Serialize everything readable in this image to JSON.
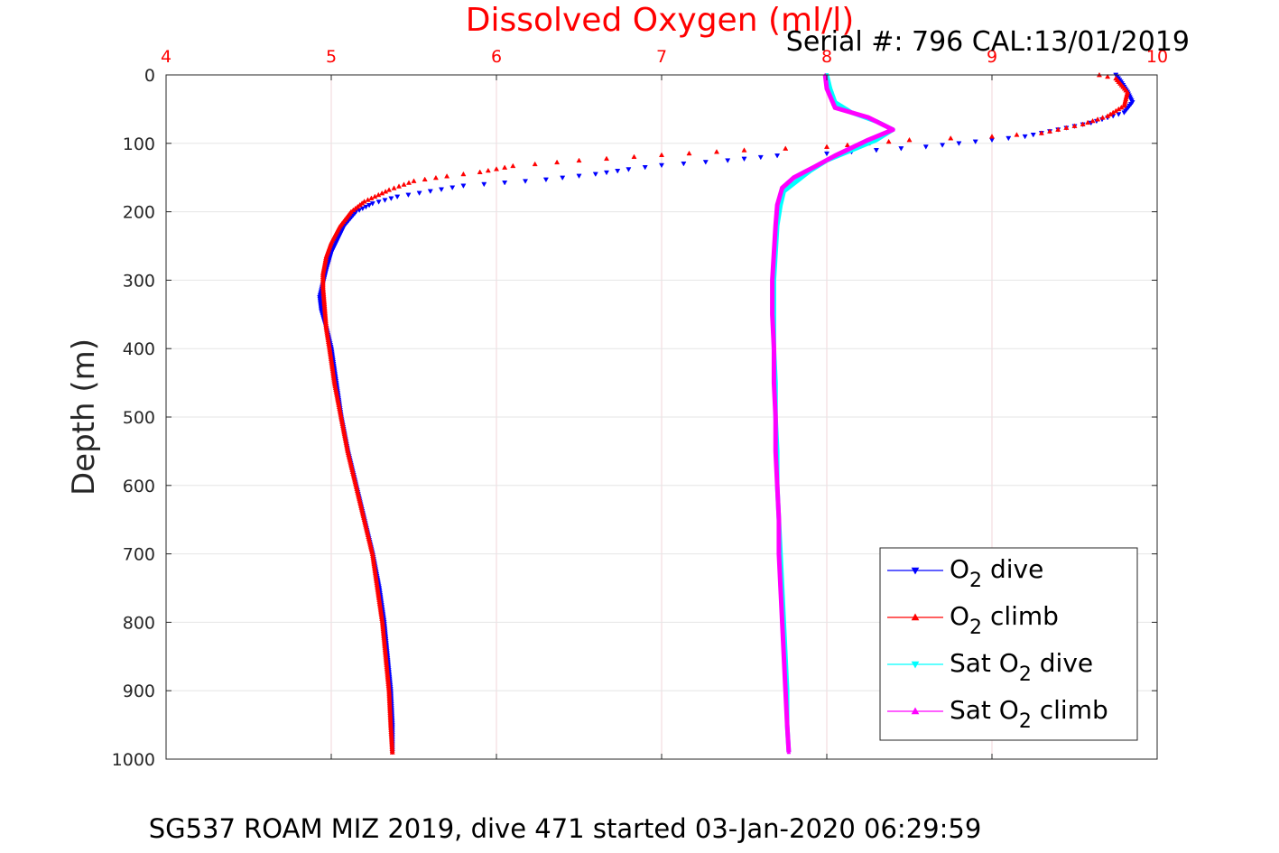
{
  "title": "Dissolved Oxygen (ml/l)",
  "serial_text": "Serial #: 796  CAL:13/01/2019",
  "footer_text": "SG537 ROAM MIZ 2019, dive 471 started 03-Jan-2020 06:29:59",
  "ylabel": "Depth (m)",
  "colors": {
    "title": "#ff0000",
    "x_ticks": "#ff0000",
    "o2_dive": "#0000ff",
    "o2_climb": "#ff0000",
    "sat_dive": "#00ffff",
    "sat_climb": "#ff00ff"
  },
  "legend": {
    "position": "bottom-right",
    "items": [
      {
        "base": "O",
        "sub": "2",
        "rest": " dive"
      },
      {
        "base": "O",
        "sub": "2",
        "rest": " climb"
      },
      {
        "base": "Sat O",
        "sub": "2",
        "rest": " dive"
      },
      {
        "base": "Sat O",
        "sub": "2",
        "rest": " climb"
      }
    ]
  },
  "chart_data": {
    "type": "line",
    "title": "Dissolved Oxygen (ml/l)",
    "xlabel": "Dissolved Oxygen (ml/l)",
    "ylabel": "Depth (m)",
    "x_axis_position": "top",
    "y_axis_reversed": true,
    "xlim": [
      4,
      10
    ],
    "ylim": [
      0,
      1000
    ],
    "x_ticks": [
      "4",
      "5",
      "6",
      "7",
      "8",
      "9",
      "10"
    ],
    "y_ticks": [
      "0",
      "100",
      "200",
      "300",
      "400",
      "500",
      "600",
      "700",
      "800",
      "900",
      "1000"
    ],
    "grid": true,
    "series": [
      {
        "name": "O2 dive",
        "marker": "triangle-down",
        "points": [
          [
            9.75,
            0
          ],
          [
            9.78,
            10
          ],
          [
            9.82,
            25
          ],
          [
            9.85,
            40
          ],
          [
            9.8,
            55
          ],
          [
            9.6,
            70
          ],
          [
            9.4,
            80
          ],
          [
            9.2,
            90
          ],
          [
            9.0,
            95
          ],
          [
            8.6,
            105
          ],
          [
            8.3,
            110
          ],
          [
            8.0,
            115
          ],
          [
            7.7,
            118
          ],
          [
            7.4,
            125
          ],
          [
            7.0,
            132
          ],
          [
            6.8,
            138
          ],
          [
            6.6,
            145
          ],
          [
            6.3,
            153
          ],
          [
            5.8,
            162
          ],
          [
            5.6,
            170
          ],
          [
            5.4,
            178
          ],
          [
            5.25,
            188
          ],
          [
            5.15,
            200
          ],
          [
            5.08,
            220
          ],
          [
            5.04,
            240
          ],
          [
            5.0,
            260
          ],
          [
            4.97,
            285
          ],
          [
            4.95,
            305
          ],
          [
            4.93,
            325
          ],
          [
            4.94,
            345
          ],
          [
            4.97,
            370
          ],
          [
            5.0,
            400
          ],
          [
            5.03,
            450
          ],
          [
            5.06,
            500
          ],
          [
            5.1,
            550
          ],
          [
            5.15,
            600
          ],
          [
            5.2,
            650
          ],
          [
            5.25,
            700
          ],
          [
            5.29,
            750
          ],
          [
            5.32,
            800
          ],
          [
            5.34,
            850
          ],
          [
            5.36,
            900
          ],
          [
            5.37,
            950
          ],
          [
            5.37,
            990
          ]
        ]
      },
      {
        "name": "O2 climb",
        "marker": "triangle-up",
        "points": [
          [
            5.37,
            990
          ],
          [
            5.36,
            950
          ],
          [
            5.35,
            900
          ],
          [
            5.33,
            850
          ],
          [
            5.31,
            800
          ],
          [
            5.28,
            750
          ],
          [
            5.25,
            700
          ],
          [
            5.2,
            650
          ],
          [
            5.15,
            600
          ],
          [
            5.1,
            550
          ],
          [
            5.06,
            500
          ],
          [
            5.02,
            450
          ],
          [
            4.99,
            400
          ],
          [
            4.97,
            370
          ],
          [
            4.96,
            340
          ],
          [
            4.95,
            310
          ],
          [
            4.95,
            290
          ],
          [
            4.97,
            265
          ],
          [
            5.0,
            245
          ],
          [
            5.05,
            222
          ],
          [
            5.12,
            200
          ],
          [
            5.2,
            185
          ],
          [
            5.35,
            168
          ],
          [
            5.5,
            155
          ],
          [
            5.7,
            148
          ],
          [
            5.9,
            142
          ],
          [
            6.1,
            133
          ],
          [
            6.5,
            125
          ],
          [
            7.0,
            117
          ],
          [
            7.5,
            110
          ],
          [
            8.0,
            105
          ],
          [
            8.5,
            95
          ],
          [
            9.0,
            90
          ],
          [
            9.3,
            85
          ],
          [
            9.55,
            72
          ],
          [
            9.7,
            60
          ],
          [
            9.8,
            45
          ],
          [
            9.82,
            25
          ],
          [
            9.75,
            5
          ],
          [
            9.65,
            0
          ]
        ]
      },
      {
        "name": "Sat O2 dive",
        "marker": "triangle-down",
        "points": [
          [
            8.0,
            0
          ],
          [
            8.02,
            20
          ],
          [
            8.05,
            40
          ],
          [
            8.15,
            55
          ],
          [
            8.3,
            68
          ],
          [
            8.4,
            80
          ],
          [
            8.3,
            95
          ],
          [
            8.15,
            110
          ],
          [
            8.0,
            125
          ],
          [
            7.9,
            140
          ],
          [
            7.82,
            155
          ],
          [
            7.74,
            170
          ],
          [
            7.72,
            190
          ],
          [
            7.7,
            220
          ],
          [
            7.69,
            260
          ],
          [
            7.68,
            300
          ],
          [
            7.68,
            350
          ],
          [
            7.68,
            400
          ],
          [
            7.69,
            450
          ],
          [
            7.69,
            500
          ],
          [
            7.7,
            550
          ],
          [
            7.7,
            600
          ],
          [
            7.71,
            650
          ],
          [
            7.72,
            700
          ],
          [
            7.73,
            750
          ],
          [
            7.74,
            800
          ],
          [
            7.75,
            850
          ],
          [
            7.76,
            900
          ],
          [
            7.76,
            950
          ],
          [
            7.77,
            990
          ]
        ]
      },
      {
        "name": "Sat O2 climb",
        "marker": "triangle-up",
        "points": [
          [
            7.77,
            990
          ],
          [
            7.76,
            950
          ],
          [
            7.75,
            900
          ],
          [
            7.74,
            850
          ],
          [
            7.73,
            800
          ],
          [
            7.72,
            750
          ],
          [
            7.71,
            700
          ],
          [
            7.71,
            650
          ],
          [
            7.7,
            600
          ],
          [
            7.69,
            550
          ],
          [
            7.69,
            500
          ],
          [
            7.68,
            450
          ],
          [
            7.68,
            400
          ],
          [
            7.67,
            350
          ],
          [
            7.67,
            300
          ],
          [
            7.68,
            260
          ],
          [
            7.69,
            220
          ],
          [
            7.7,
            190
          ],
          [
            7.73,
            165
          ],
          [
            7.8,
            150
          ],
          [
            7.92,
            135
          ],
          [
            8.05,
            118
          ],
          [
            8.25,
            95
          ],
          [
            8.4,
            80
          ],
          [
            8.25,
            62
          ],
          [
            8.05,
            48
          ],
          [
            8.0,
            20
          ],
          [
            7.99,
            0
          ]
        ]
      }
    ]
  }
}
